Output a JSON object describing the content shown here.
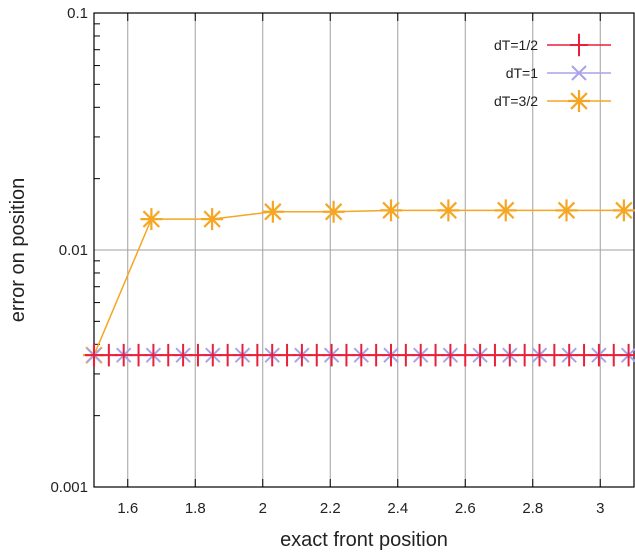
{
  "chart_data": {
    "type": "line",
    "xlabel": "exact front position",
    "ylabel": "error on position",
    "xlim": [
      1.5,
      3.1
    ],
    "ylim": [
      0.001,
      0.1
    ],
    "yscale": "log",
    "grid": true,
    "legend_position": "top-right",
    "x_ticks": [
      1.6,
      1.8,
      2,
      2.2,
      2.4,
      2.6,
      2.8,
      3
    ],
    "x_tick_labels": [
      "1.6",
      "1.8",
      "2",
      "2.2",
      "2.4",
      "2.6",
      "2.8",
      "3"
    ],
    "y_ticks": [
      0.001,
      0.01,
      0.1
    ],
    "y_tick_labels": [
      "0.001",
      "0.01",
      "0.1"
    ],
    "series": [
      {
        "name": "dT=1/2",
        "color": "#e8203c",
        "marker": "plus",
        "x": [
          1.5,
          1.544,
          1.588,
          1.632,
          1.676,
          1.72,
          1.764,
          1.808,
          1.852,
          1.896,
          1.94,
          1.984,
          2.028,
          2.072,
          2.116,
          2.16,
          2.204,
          2.248,
          2.292,
          2.336,
          2.38,
          2.424,
          2.468,
          2.512,
          2.556,
          2.6,
          2.644,
          2.688,
          2.732,
          2.776,
          2.82,
          2.864,
          2.908,
          2.952,
          2.996,
          3.04,
          3.084
        ],
        "y": [
          0.0036,
          0.0036,
          0.0036,
          0.0036,
          0.0036,
          0.0036,
          0.0036,
          0.0036,
          0.0036,
          0.0036,
          0.0036,
          0.0036,
          0.0036,
          0.0036,
          0.0036,
          0.0036,
          0.0036,
          0.0036,
          0.0036,
          0.0036,
          0.0036,
          0.0036,
          0.0036,
          0.0036,
          0.0036,
          0.0036,
          0.0036,
          0.0036,
          0.0036,
          0.0036,
          0.0036,
          0.0036,
          0.0036,
          0.0036,
          0.0036,
          0.0036,
          0.0036
        ]
      },
      {
        "name": "dT=1",
        "color": "#a9a3ea",
        "marker": "x",
        "x": [
          1.5,
          1.588,
          1.676,
          1.764,
          1.852,
          1.94,
          2.028,
          2.116,
          2.204,
          2.292,
          2.38,
          2.468,
          2.556,
          2.644,
          2.732,
          2.82,
          2.908,
          2.996,
          3.084
        ],
        "y": [
          0.0036,
          0.0036,
          0.0036,
          0.0036,
          0.0036,
          0.0036,
          0.0036,
          0.0036,
          0.0036,
          0.0036,
          0.0036,
          0.0036,
          0.0036,
          0.0036,
          0.0036,
          0.0036,
          0.0036,
          0.0036,
          0.0036
        ]
      },
      {
        "name": "dT=3/2",
        "color": "#f5a623",
        "marker": "star",
        "x": [
          1.5,
          1.67,
          1.85,
          2.03,
          2.21,
          2.38,
          2.55,
          2.72,
          2.9,
          3.07
        ],
        "y": [
          0.0036,
          0.0135,
          0.0135,
          0.0145,
          0.0145,
          0.0147,
          0.0147,
          0.0147,
          0.0147,
          0.0147
        ]
      }
    ]
  }
}
